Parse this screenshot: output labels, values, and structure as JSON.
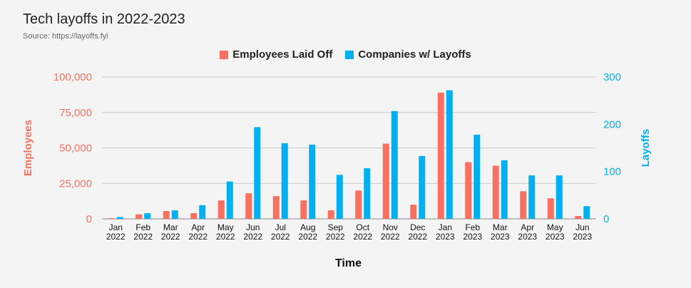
{
  "title": "Tech layoffs in 2022-2023",
  "subtitle": "Source: https://layoffs.fyi",
  "legend": {
    "employees": "Employees Laid Off",
    "companies": "Companies w/ Layoffs"
  },
  "colors": {
    "employees": "#f87060",
    "companies": "#00b0f0"
  },
  "chart_data": {
    "type": "bar",
    "title": "Tech layoffs in 2022-2023",
    "xlabel": "Time",
    "ylabel_left": "Employees",
    "ylabel_right": "Layoffs",
    "ylim_left": [
      0,
      100000
    ],
    "ylim_right": [
      0,
      300
    ],
    "yticks_left": [
      "0",
      "25,000",
      "50,000",
      "75,000",
      "100,000"
    ],
    "yticks_right": [
      "0",
      "100",
      "200",
      "300"
    ],
    "grid": true,
    "legend_position": "top",
    "categories": [
      [
        "Jan",
        "2022"
      ],
      [
        "Feb",
        "2022"
      ],
      [
        "Mar",
        "2022"
      ],
      [
        "Apr",
        "2022"
      ],
      [
        "May",
        "2022"
      ],
      [
        "Jun",
        "2022"
      ],
      [
        "Jul",
        "2022"
      ],
      [
        "Aug",
        "2022"
      ],
      [
        "Sep",
        "2022"
      ],
      [
        "Oct",
        "2022"
      ],
      [
        "Nov",
        "2022"
      ],
      [
        "Dec",
        "2022"
      ],
      [
        "Jan",
        "2023"
      ],
      [
        "Feb",
        "2023"
      ],
      [
        "Mar",
        "2023"
      ],
      [
        "Apr",
        "2023"
      ],
      [
        "May",
        "2023"
      ],
      [
        "Jun",
        "2023"
      ]
    ],
    "series": [
      {
        "name": "Employees Laid Off",
        "axis": "left",
        "values": [
          500,
          3200,
          5500,
          4000,
          13000,
          18000,
          16000,
          13000,
          6000,
          20000,
          53000,
          10000,
          89000,
          40000,
          37500,
          19500,
          14500,
          2000
        ]
      },
      {
        "name": "Companies w/ Layoffs",
        "axis": "right",
        "values": [
          4,
          12,
          18,
          29,
          79,
          194,
          160,
          157,
          93,
          107,
          228,
          133,
          272,
          178,
          124,
          92,
          92,
          27
        ]
      }
    ]
  }
}
